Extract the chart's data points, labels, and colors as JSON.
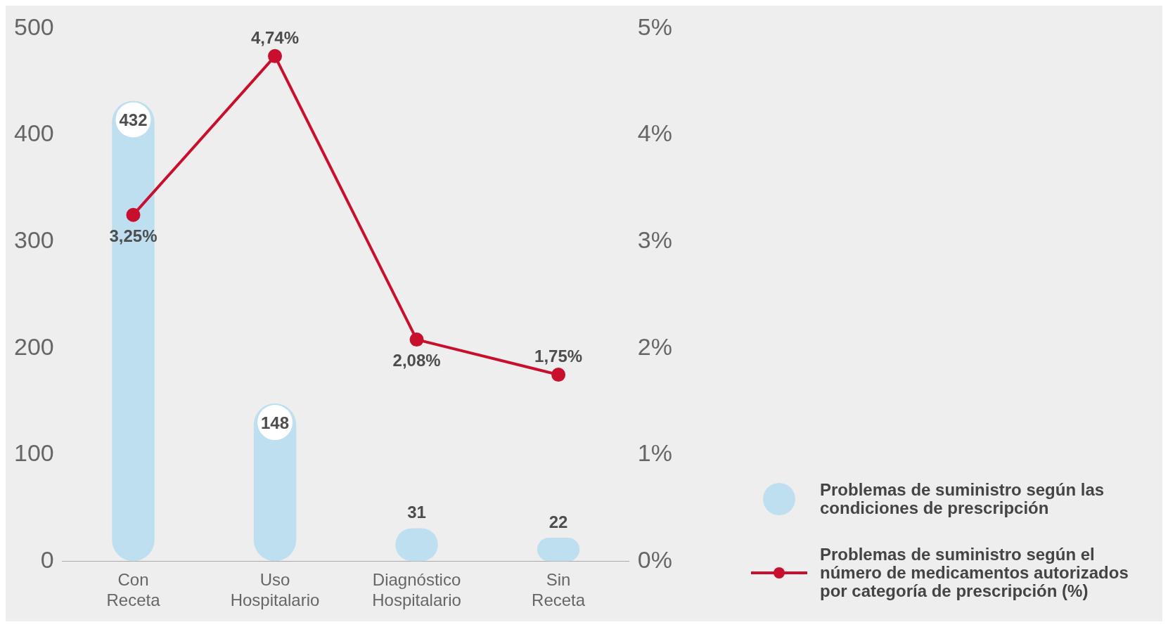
{
  "chart_data": {
    "type": "bar",
    "categories": [
      "Con Receta",
      "Uso Hospitalario",
      "Diagnóstico Hospitalario",
      "Sin Receta"
    ],
    "series": [
      {
        "name": "Problemas de suministro según las condiciones de prescripción",
        "color": "#bddff0",
        "values": [
          432,
          148,
          31,
          22
        ],
        "value_labels": [
          "432",
          "148",
          "31",
          "22"
        ]
      },
      {
        "name": "Problemas de suministro según el número de medicamentos autorizados por categoría de prescripción (%)",
        "type": "line",
        "axis": "y2",
        "color": "#c8102e",
        "values": [
          3.25,
          4.74,
          2.08,
          1.75
        ],
        "value_labels": [
          "3,25%",
          "4,74%",
          "2,08%",
          "1,75%"
        ],
        "marker": "circle",
        "line_style": "solid"
      }
    ],
    "ylim": [
      0,
      500
    ],
    "yticks": [
      0,
      100,
      200,
      300,
      400,
      500
    ],
    "y2lim": [
      0,
      5
    ],
    "y2ticks": [
      {
        "value": 0,
        "label": "0%"
      },
      {
        "value": 1,
        "label": "1%"
      },
      {
        "value": 2,
        "label": "2%"
      },
      {
        "value": 3,
        "label": "3%"
      },
      {
        "value": 4,
        "label": "4%"
      },
      {
        "value": 5,
        "label": "5%"
      }
    ],
    "grid": false,
    "legend": "bottom right"
  }
}
